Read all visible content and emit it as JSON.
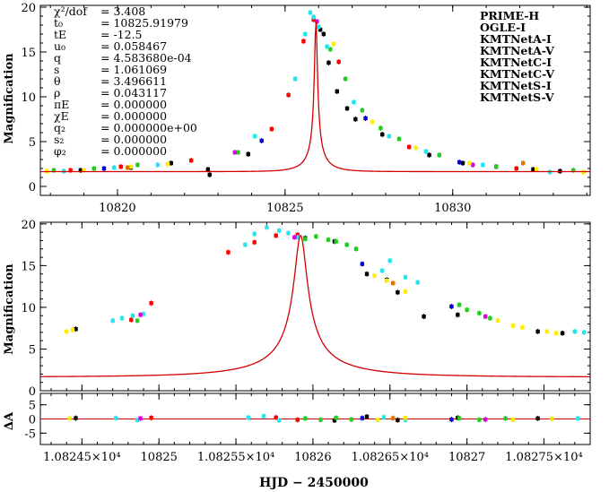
{
  "colors": {
    "model": "#d40000",
    "PRIME-H": "#000000",
    "OGLE-I": "#ff0000",
    "KMTNetA-I": "#22cc22",
    "KMTNetA-V": "#0000cc",
    "KMTNetC-I": "#22e5ee",
    "KMTNetC-V": "#dd00dd",
    "KMTNetS-I": "#ffee00",
    "KMTNetS-V": "#dd7700"
  },
  "params": [
    {
      "name": "χ²/dof",
      "value": "= 3.408"
    },
    {
      "name": "t₀",
      "value": "= 10825.91979"
    },
    {
      "name": "tE",
      "value": "= -12.5"
    },
    {
      "name": "u₀",
      "value": "= 0.058467"
    },
    {
      "name": "q",
      "value": "= 4.583680e-04"
    },
    {
      "name": "s",
      "value": "= 1.061069"
    },
    {
      "name": "θ",
      "value": "= 3.496611"
    },
    {
      "name": "ρ",
      "value": "= 0.043117"
    },
    {
      "name": "πE",
      "value": "= 0.000000"
    },
    {
      "name": "χE",
      "value": "= 0.000000"
    },
    {
      "name": "q₂",
      "value": "= 0.000000e+00"
    },
    {
      "name": "s₂",
      "value": "= 0.000000"
    },
    {
      "name": "φ₂",
      "value": "= 0.000000"
    }
  ],
  "legend": [
    "PRIME-H",
    "OGLE-I",
    "KMTNetA-I",
    "KMTNetA-V",
    "KMTNetC-I",
    "KMTNetC-V",
    "KMTNetS-I",
    "KMTNetS-V"
  ],
  "chart_data": [
    {
      "type": "scatter",
      "title": "",
      "xlabel": "",
      "ylabel": "Magnification",
      "xlim": [
        10817.7,
        10834.1
      ],
      "ylim": [
        -1,
        20.2
      ],
      "xticks": [
        10820,
        10825,
        10830
      ],
      "yticks": [
        0,
        5,
        10,
        15,
        20
      ],
      "model": {
        "t0": 10825.92,
        "peak": 18.6,
        "baseline": 1.65
      },
      "series": [
        {
          "name": "PRIME-H",
          "x": [
            10818.9,
            10820.4,
            10821.6,
            10822.7,
            10822.75,
            10823.9,
            10826.05,
            10826.15,
            10826.3,
            10826.55,
            10826.85,
            10827.1,
            10827.9,
            10829.3,
            10830.3,
            10831.3,
            10832.4,
            10833.2
          ],
          "y": [
            1.8,
            2.1,
            2.6,
            1.9,
            1.3,
            3.6,
            17.5,
            17.0,
            13.8,
            10.6,
            8.7,
            7.5,
            5.8,
            3.5,
            2.6,
            2.2,
            1.9,
            1.7
          ]
        },
        {
          "name": "OGLE-I",
          "x": [
            10818.6,
            10820.1,
            10822.2,
            10824.6,
            10825.1,
            10825.55,
            10825.85,
            10826.6,
            10828.7,
            10831.9
          ],
          "y": [
            1.8,
            2.2,
            2.9,
            6.4,
            10.2,
            16.2,
            18.6,
            13.9,
            4.4,
            2.0
          ]
        },
        {
          "name": "KMTNetA-I",
          "x": [
            10818.1,
            10819.3,
            10820.6,
            10823.6,
            10826.35,
            10826.8,
            10827.3,
            10827.85,
            10828.4,
            10829.6,
            10831.3,
            10833.6
          ],
          "y": [
            1.8,
            2.0,
            2.4,
            3.8,
            15.3,
            12.0,
            8.5,
            6.5,
            5.3,
            3.5,
            2.2,
            1.8
          ]
        },
        {
          "name": "KMTNetA-V",
          "x": [
            10819.6,
            10824.3,
            10827.4,
            10830.2
          ],
          "y": [
            2.0,
            5.1,
            7.6,
            2.7
          ]
        },
        {
          "name": "KMTNetC-I",
          "x": [
            10818.4,
            10819.9,
            10821.2,
            10824.1,
            10825.3,
            10825.6,
            10825.75,
            10825.85,
            10826.0,
            10826.25,
            10827.05,
            10828.1,
            10829.2,
            10830.9,
            10832.9
          ],
          "y": [
            1.7,
            2.1,
            2.4,
            5.6,
            12.0,
            17.0,
            19.4,
            18.9,
            17.8,
            15.6,
            9.4,
            5.6,
            3.9,
            2.4,
            1.6
          ]
        },
        {
          "name": "KMTNetC-V",
          "x": [
            10823.5,
            10825.95,
            10830.6
          ],
          "y": [
            3.8,
            18.4,
            2.4
          ]
        },
        {
          "name": "KMTNetS-I",
          "x": [
            10817.9,
            10819.0,
            10820.4,
            10821.5,
            10826.45,
            10827.6,
            10828.9,
            10830.5,
            10832.5,
            10833.9
          ],
          "y": [
            1.7,
            1.8,
            2.2,
            2.5,
            15.9,
            7.2,
            4.3,
            2.6,
            1.9,
            1.6
          ]
        },
        {
          "name": "KMTNetS-V",
          "x": [
            10820.3,
            10832.1
          ],
          "y": [
            2.1,
            2.6
          ]
        }
      ]
    },
    {
      "type": "scatter",
      "title": "",
      "xlabel": "HJD − 2450000",
      "ylabel": "Magnification",
      "xlim": [
        10824.23,
        10827.8
      ],
      "ylim": [
        0,
        20.2
      ],
      "xticks": [
        10824.5,
        10825,
        10825.5,
        10826,
        10826.5,
        10827,
        10827.5
      ],
      "xticklabels": [
        "1.08245×10⁴",
        "10825",
        "1.08255×10⁴",
        "10826",
        "1.08265×10⁴",
        "10827",
        "1.08275×10⁴"
      ],
      "yticks": [
        0,
        5,
        10,
        15,
        20
      ],
      "series": [
        {
          "name": "PRIME-H",
          "x": [
            10824.46,
            10825.95,
            10826.14,
            10826.35,
            10826.48,
            10826.55,
            10826.72,
            10826.94,
            10827.46,
            10827.62
          ],
          "y": [
            7.4,
            18.3,
            17.9,
            14.0,
            13.3,
            11.8,
            8.9,
            9.1,
            7.1,
            6.9
          ]
        },
        {
          "name": "OGLE-I",
          "x": [
            10824.82,
            10824.95,
            10825.45,
            10825.62,
            10825.76,
            10825.9
          ],
          "y": [
            8.5,
            10.5,
            16.6,
            17.8,
            18.6,
            18.7
          ]
        },
        {
          "name": "KMTNetA-I",
          "x": [
            10824.86,
            10825.95,
            10826.02,
            10826.1,
            10826.15,
            10826.22,
            10826.28,
            10826.95,
            10827.0,
            10827.08,
            10827.15
          ],
          "y": [
            8.4,
            18.2,
            18.5,
            18.1,
            17.9,
            17.5,
            17.0,
            10.3,
            9.7,
            9.3,
            8.7
          ]
        },
        {
          "name": "KMTNetA-V",
          "x": [
            10826.32,
            10826.9
          ],
          "y": [
            15.2,
            10.1
          ]
        },
        {
          "name": "KMTNetC-I",
          "x": [
            10824.7,
            10824.76,
            10824.83,
            10824.9,
            10825.56,
            10825.62,
            10825.7,
            10825.78,
            10825.84,
            10825.9,
            10826.45,
            10826.5,
            10826.6,
            10826.68,
            10827.7,
            10827.76
          ],
          "y": [
            8.4,
            8.7,
            9.0,
            9.2,
            17.5,
            18.8,
            19.6,
            19.2,
            18.9,
            18.4,
            14.4,
            15.6,
            13.6,
            13.0,
            7.1,
            7.0
          ]
        },
        {
          "name": "KMTNetC-V",
          "x": [
            10824.88,
            10825.88,
            10827.12
          ],
          "y": [
            9.1,
            18.4,
            8.9
          ]
        },
        {
          "name": "KMTNetS-I",
          "x": [
            10824.4,
            10824.44,
            10826.4,
            10826.48,
            10826.6,
            10827.2,
            10827.3,
            10827.36,
            10827.52,
            10827.58
          ],
          "y": [
            7.1,
            7.3,
            13.8,
            13.2,
            11.9,
            8.4,
            7.8,
            7.6,
            7.1,
            6.9
          ]
        },
        {
          "name": "KMTNetS-V",
          "x": [
            10826.52
          ],
          "y": [
            12.9
          ]
        }
      ],
      "residuals": {
        "ylabel": "ΔA",
        "yticks": [
          5,
          0,
          -5
        ],
        "ylim": [
          -9,
          9
        ],
        "series": [
          {
            "name": "PRIME-H",
            "x": [
              10824.46,
              10826.14,
              10826.35,
              10826.55,
              10826.94,
              10827.46
            ],
            "y": [
              0.3,
              -0.5,
              0.8,
              -0.4,
              0.4,
              0.2
            ]
          },
          {
            "name": "OGLE-I",
            "x": [
              10824.95,
              10825.76,
              10825.9
            ],
            "y": [
              0.4,
              0.5,
              -0.3
            ]
          },
          {
            "name": "KMTNetA-I",
            "x": [
              10825.95,
              10826.05,
              10826.15,
              10826.25,
              10826.95,
              10827.08,
              10827.25
            ],
            "y": [
              0.2,
              -0.3,
              0.4,
              -0.2,
              0.3,
              -0.3,
              0.2
            ]
          },
          {
            "name": "KMTNetA-V",
            "x": [
              10826.32,
              10826.9
            ],
            "y": [
              0.3,
              -0.2
            ]
          },
          {
            "name": "KMTNetC-I",
            "x": [
              10824.72,
              10824.86,
              10825.58,
              10825.68,
              10825.78,
              10826.46,
              10826.6,
              10827.72
            ],
            "y": [
              0.3,
              -0.4,
              0.5,
              1.0,
              -0.5,
              0.6,
              -0.3,
              0.2
            ]
          },
          {
            "name": "KMTNetC-V",
            "x": [
              10824.88,
              10827.12
            ],
            "y": [
              0.2,
              -0.2
            ]
          },
          {
            "name": "KMTNetS-I",
            "x": [
              10824.42,
              10826.42,
              10826.6,
              10827.3,
              10827.55
            ],
            "y": [
              0.2,
              -0.3,
              0.4,
              -0.2,
              0.1
            ]
          },
          {
            "name": "KMTNetS-V",
            "x": [
              10826.52
            ],
            "y": [
              0.3
            ]
          }
        ]
      }
    }
  ]
}
